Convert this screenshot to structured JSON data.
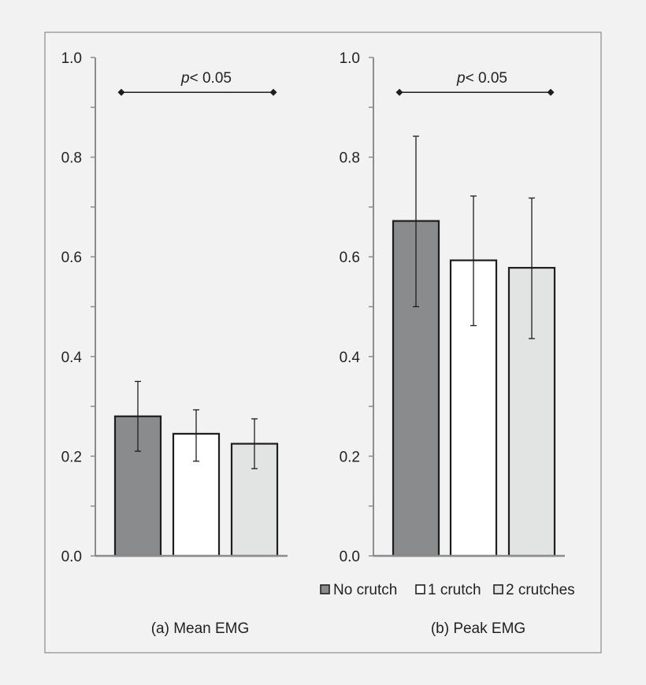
{
  "legend": [
    {
      "label": "No crutch",
      "color": "#8a8b8d"
    },
    {
      "label": "1 crutch",
      "color": "#ffffff"
    },
    {
      "label": "2 crutches",
      "color": "#e2e4e3"
    }
  ],
  "chart_data": [
    {
      "type": "bar",
      "caption": "(a) Mean EMG",
      "categories": [
        "No crutch",
        "1 crutch",
        "2 crutches"
      ],
      "values": [
        0.28,
        0.245,
        0.225
      ],
      "error": [
        [
          0.21,
          0.35
        ],
        [
          0.19,
          0.293
        ],
        [
          0.175,
          0.275
        ]
      ],
      "ylim": [
        0,
        1.0
      ],
      "yticks": [
        "0.0",
        "0.2",
        "0.4",
        "0.6",
        "0.8",
        "1.0"
      ],
      "significance": {
        "p_italic": "p",
        "text": "< 0.05",
        "level": 0.93,
        "from": 0,
        "to": 2
      }
    },
    {
      "type": "bar",
      "caption": "(b) Peak EMG",
      "categories": [
        "No crutch",
        "1 crutch",
        "2 crutches"
      ],
      "values": [
        0.672,
        0.593,
        0.578
      ],
      "error": [
        [
          0.5,
          0.842
        ],
        [
          0.462,
          0.722
        ],
        [
          0.436,
          0.718
        ]
      ],
      "ylim": [
        0,
        1.0
      ],
      "yticks": [
        "0.0",
        "0.2",
        "0.4",
        "0.6",
        "0.8",
        "1.0"
      ],
      "significance": {
        "p_italic": "p",
        "text": "< 0.05",
        "level": 0.93,
        "from": 0,
        "to": 2
      }
    }
  ]
}
